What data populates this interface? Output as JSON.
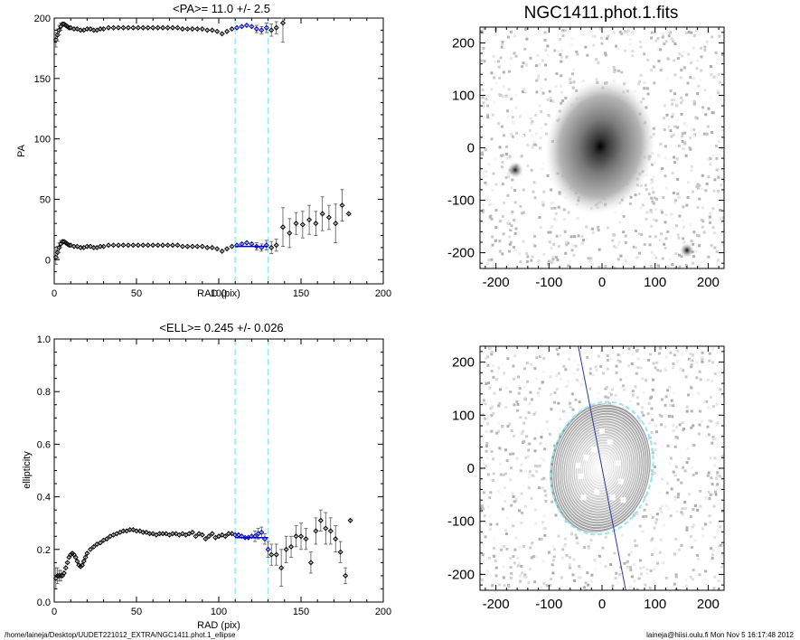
{
  "footer": {
    "path": "/home/laineja/Desktop/UUDET221012_EXTRA/NGC1411.phot.1_ellipse",
    "user_time": "laineja@hiisi.oulu.fi  Mon Nov  5 16:17:48 2012"
  },
  "colors": {
    "marker": "#000000",
    "errorbar": "#555555",
    "fit": "#0000cc",
    "boundary": "#8ee8ee",
    "ray": "#3333aa"
  },
  "image_top": {
    "title": "NGC1411.phot.1.fits",
    "xticks": [
      "-200",
      "-100",
      "0",
      "100",
      "200"
    ],
    "yticks": [
      "200",
      "100",
      "0",
      "-100",
      "-200"
    ],
    "xlim": [
      -230,
      230
    ],
    "ylim": [
      -230,
      230
    ]
  },
  "image_bottom": {
    "xticks": [
      "-200",
      "-100",
      "0",
      "100",
      "200"
    ],
    "yticks": [
      "200",
      "100",
      "0",
      "-100",
      "-200"
    ],
    "xlim": [
      -230,
      230
    ],
    "ylim": [
      -230,
      230
    ],
    "outer_ellipse": {
      "a_pix": 130,
      "ell": 0.245,
      "pa_deg": 11
    }
  },
  "chart_data": [
    {
      "type": "scatter",
      "title": "<PA>=  11.0 +/-   2.5",
      "xlabel": "RAD (pix)",
      "ylabel": "PA",
      "xlim": [
        0,
        200
      ],
      "ylim": [
        -20,
        200
      ],
      "xticks": [
        "0",
        "50",
        "100",
        "150",
        "200"
      ],
      "yticks": [
        "0",
        "50",
        "100",
        "150",
        "200"
      ],
      "fit_range": [
        110,
        130
      ],
      "fit_value": 11.0,
      "series": [
        {
          "x": [
            1,
            2,
            3,
            4,
            5,
            6,
            7,
            8,
            9,
            10,
            12,
            14,
            16,
            18,
            20,
            22,
            24,
            26,
            28,
            30,
            33,
            36,
            39,
            42,
            45,
            48,
            51,
            54,
            57,
            60,
            63,
            66,
            69,
            72,
            75,
            78,
            81,
            84,
            87,
            90,
            93,
            96,
            99,
            102,
            105,
            108,
            111,
            114,
            117,
            120,
            123,
            126,
            129,
            132,
            135,
            139,
            143,
            147,
            151,
            155,
            159,
            163,
            167,
            171,
            175,
            179
          ],
          "y": [
            2,
            6,
            10,
            13,
            15,
            15,
            14,
            13,
            12,
            12,
            11,
            11,
            10,
            10,
            11,
            11,
            10,
            10,
            11,
            11,
            12,
            12,
            12,
            12,
            12,
            12,
            12,
            12,
            12,
            12,
            12,
            12,
            12,
            12,
            12,
            11,
            11,
            11,
            11,
            11,
            10,
            10,
            9,
            7,
            9,
            11,
            12,
            13,
            14,
            13,
            11,
            10,
            12,
            10,
            12,
            27,
            22,
            30,
            29,
            33,
            30,
            38,
            35,
            30,
            45,
            38
          ],
          "err": [
            6,
            5,
            4,
            3,
            2,
            1,
            1,
            1,
            1,
            1,
            1,
            1,
            1,
            1,
            1,
            1,
            1,
            1,
            1,
            1,
            1,
            1,
            1,
            1,
            1,
            1,
            1,
            1,
            1,
            1,
            1,
            1,
            1,
            1,
            1,
            1,
            1,
            1,
            1,
            1,
            1,
            1,
            1,
            1,
            1,
            1,
            2,
            2,
            2,
            2,
            3,
            3,
            4,
            5,
            5,
            16,
            12,
            9,
            11,
            12,
            10,
            14,
            10,
            16,
            13,
            2
          ]
        },
        {
          "x": [
            1,
            2,
            3,
            4,
            5,
            6,
            7,
            8,
            9,
            10,
            12,
            14,
            16,
            18,
            20,
            22,
            24,
            26,
            28,
            30,
            33,
            36,
            39,
            42,
            45,
            48,
            51,
            54,
            57,
            60,
            63,
            66,
            69,
            72,
            75,
            78,
            81,
            84,
            87,
            90,
            93,
            96,
            99,
            102,
            105,
            108,
            111,
            114,
            117,
            120,
            123,
            126,
            129,
            132,
            135,
            139
          ],
          "y": [
            182,
            186,
            190,
            193,
            195,
            195,
            194,
            193,
            192,
            192,
            191,
            191,
            190,
            190,
            191,
            191,
            190,
            190,
            191,
            191,
            192,
            192,
            192,
            192,
            192,
            192,
            192,
            192,
            192,
            192,
            192,
            192,
            192,
            192,
            192,
            191,
            191,
            191,
            191,
            191,
            190,
            190,
            189,
            187,
            189,
            191,
            192,
            193,
            194,
            193,
            191,
            190,
            192,
            190,
            192,
            196
          ],
          "err": [
            6,
            5,
            4,
            3,
            2,
            1,
            1,
            1,
            1,
            1,
            1,
            1,
            1,
            1,
            1,
            1,
            1,
            1,
            1,
            1,
            1,
            1,
            1,
            1,
            1,
            1,
            1,
            1,
            1,
            1,
            1,
            1,
            1,
            1,
            1,
            1,
            1,
            1,
            1,
            1,
            1,
            1,
            1,
            1,
            1,
            1,
            2,
            2,
            2,
            2,
            3,
            3,
            4,
            5,
            5,
            16
          ]
        }
      ]
    },
    {
      "type": "scatter",
      "title": "<ELL>= 0.245 +/-  0.026",
      "xlabel": "RAD (pix)",
      "ylabel": "ellipticity",
      "xlim": [
        0,
        200
      ],
      "ylim": [
        0,
        1.0
      ],
      "xticks": [
        "0",
        "50",
        "100",
        "150",
        "200"
      ],
      "yticks": [
        "0.0",
        "0.2",
        "0.4",
        "0.6",
        "0.8",
        "1.0"
      ],
      "fit_range": [
        110,
        130
      ],
      "fit_value": 0.245,
      "series": [
        {
          "x": [
            1,
            2,
            3,
            4,
            5,
            6,
            7,
            8,
            9,
            10,
            11,
            12,
            13,
            14,
            15,
            16,
            17,
            18,
            19,
            20,
            22,
            24,
            26,
            28,
            30,
            32,
            34,
            36,
            38,
            40,
            42,
            44,
            46,
            48,
            50,
            52,
            54,
            56,
            58,
            60,
            62,
            64,
            66,
            68,
            70,
            72,
            74,
            76,
            78,
            80,
            82,
            84,
            86,
            88,
            90,
            92,
            94,
            96,
            98,
            100,
            102,
            104,
            106,
            108,
            110,
            112,
            114,
            116,
            118,
            120,
            122,
            124,
            126,
            128,
            130,
            132,
            135,
            138,
            141,
            144,
            147,
            150,
            153,
            156,
            159,
            162,
            165,
            168,
            171,
            174,
            177,
            180
          ],
          "y": [
            0.09,
            0.1,
            0.1,
            0.1,
            0.1,
            0.11,
            0.13,
            0.15,
            0.17,
            0.18,
            0.185,
            0.18,
            0.17,
            0.155,
            0.14,
            0.135,
            0.14,
            0.155,
            0.17,
            0.185,
            0.2,
            0.21,
            0.22,
            0.225,
            0.235,
            0.24,
            0.25,
            0.255,
            0.26,
            0.265,
            0.27,
            0.27,
            0.275,
            0.275,
            0.27,
            0.27,
            0.265,
            0.265,
            0.26,
            0.26,
            0.255,
            0.26,
            0.26,
            0.26,
            0.255,
            0.26,
            0.26,
            0.255,
            0.26,
            0.255,
            0.26,
            0.265,
            0.25,
            0.26,
            0.255,
            0.24,
            0.25,
            0.26,
            0.245,
            0.25,
            0.255,
            0.25,
            0.26,
            0.26,
            0.255,
            0.255,
            0.25,
            0.245,
            0.245,
            0.25,
            0.25,
            0.26,
            0.265,
            0.24,
            0.2,
            0.18,
            0.18,
            0.13,
            0.2,
            0.21,
            0.25,
            0.25,
            0.24,
            0.15,
            0.27,
            0.31,
            0.28,
            0.27,
            0.24,
            0.19,
            0.1,
            0.31
          ],
          "err": [
            0.04,
            0.03,
            0.02,
            0.02,
            0.01,
            0.01,
            0.01,
            0.01,
            0.01,
            0.01,
            0.01,
            0.01,
            0.01,
            0.01,
            0.01,
            0.01,
            0.01,
            0.01,
            0.01,
            0.01,
            0.005,
            0.005,
            0.005,
            0.005,
            0.005,
            0.005,
            0.005,
            0.005,
            0.005,
            0.005,
            0.005,
            0.005,
            0.005,
            0.005,
            0.005,
            0.005,
            0.005,
            0.005,
            0.005,
            0.005,
            0.005,
            0.005,
            0.005,
            0.005,
            0.005,
            0.005,
            0.005,
            0.005,
            0.005,
            0.005,
            0.005,
            0.005,
            0.005,
            0.005,
            0.005,
            0.005,
            0.005,
            0.005,
            0.01,
            0.01,
            0.01,
            0.01,
            0.01,
            0.01,
            0.01,
            0.01,
            0.01,
            0.01,
            0.01,
            0.01,
            0.02,
            0.02,
            0.02,
            0.02,
            0.03,
            0.04,
            0.04,
            0.07,
            0.05,
            0.04,
            0.04,
            0.05,
            0.04,
            0.04,
            0.05,
            0.04,
            0.06,
            0.05,
            0.05,
            0.04,
            0.03,
            0.01
          ]
        }
      ]
    }
  ]
}
